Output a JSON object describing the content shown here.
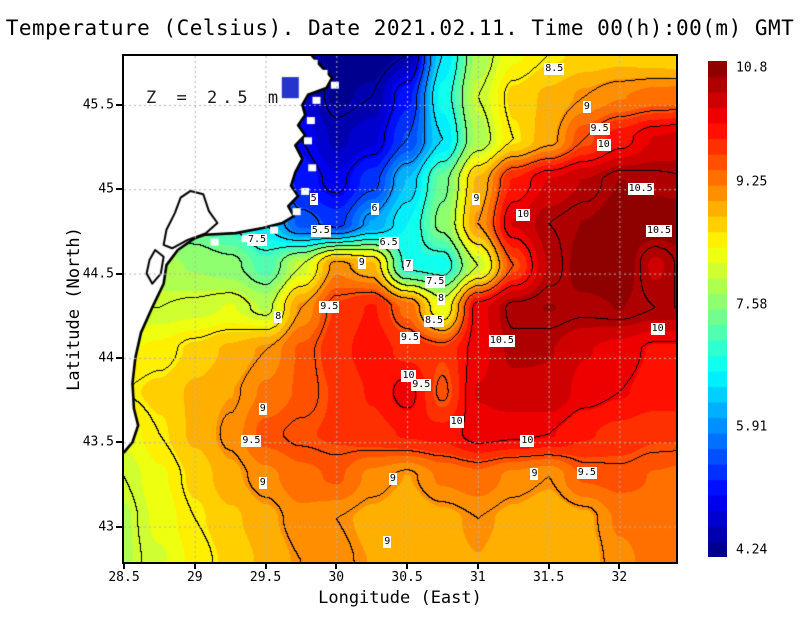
{
  "title": "Temperature (Celsius). Date 2021.02.11. Time 00(h):00(m) GMT",
  "annotation": "Z = 2.5 m",
  "axes": {
    "x": {
      "label": "Longitude (East)",
      "ticks": [
        28.5,
        29,
        29.5,
        30,
        30.5,
        31,
        31.5,
        32
      ],
      "tick_labels": [
        "28.5",
        "29",
        "29.5",
        "30",
        "30.5",
        "31",
        "31.5",
        "32"
      ]
    },
    "y": {
      "label": "Latitude (North)",
      "ticks": [
        45.5,
        45,
        44.5,
        44,
        43.5,
        43
      ],
      "tick_labels": [
        "45.5",
        "45",
        "44.5",
        "44",
        "43.5",
        "43"
      ]
    }
  },
  "colorbar": {
    "min": 4.24,
    "max": 10.8,
    "n_segments": 32,
    "labels": [
      "10.8",
      "9.25",
      "7.58",
      "5.91",
      "4.24"
    ],
    "label_values": [
      10.8,
      9.25,
      7.58,
      5.91,
      4.24
    ]
  },
  "chart_data": {
    "type": "heatmap",
    "subtype": "filled-contour-map",
    "lon_min": 28.5,
    "lon_max": 32.4,
    "lat_min": 42.79,
    "lat_max": 45.79,
    "fill_min": 4.24,
    "fill_max": 10.8,
    "contour_interval": 0.5,
    "grid_lon_start": 28.5,
    "grid_lat_start": 45.8,
    "grid_step": 0.25,
    "temps": [
      [
        6.0,
        6.0,
        5.8,
        5.5,
        5.2,
        4.8,
        4.3,
        4.3,
        4.5,
        6.5,
        7.8,
        8.3,
        8.5,
        8.6,
        8.65,
        8.6,
        8.5
      ],
      [
        6.2,
        6.2,
        6.0,
        5.6,
        5.2,
        4.8,
        4.4,
        4.5,
        5.2,
        6.8,
        8.0,
        8.6,
        8.8,
        9.0,
        9.15,
        9.25,
        9.3
      ],
      [
        6.5,
        6.5,
        6.3,
        5.8,
        5.4,
        5.0,
        4.6,
        4.8,
        5.5,
        6.5,
        7.8,
        8.5,
        8.9,
        9.5,
        9.9,
        10.2,
        10.3
      ],
      [
        7.0,
        7.0,
        6.8,
        6.3,
        5.8,
        5.2,
        4.9,
        5.4,
        6.3,
        7.4,
        8.8,
        9.8,
        10.2,
        10.4,
        10.6,
        10.55,
        10.5
      ],
      [
        7.5,
        7.5,
        7.3,
        7.0,
        6.5,
        5.6,
        5.4,
        6.1,
        6.7,
        7.6,
        9.0,
        10.2,
        10.5,
        10.6,
        10.7,
        10.72,
        10.7
      ],
      [
        7.8,
        7.8,
        7.7,
        7.6,
        7.2,
        8.0,
        9.1,
        8.8,
        6.9,
        6.8,
        8.0,
        9.5,
        10.4,
        10.7,
        10.75,
        10.35,
        10.6
      ],
      [
        8.0,
        8.0,
        8.05,
        8.15,
        7.9,
        9.0,
        9.6,
        9.8,
        9.3,
        8.2,
        10.1,
        10.55,
        10.6,
        10.55,
        10.6,
        10.5,
        10.5
      ],
      [
        8.3,
        8.4,
        8.6,
        8.8,
        9.0,
        9.4,
        9.7,
        9.9,
        9.7,
        9.6,
        10.1,
        10.45,
        10.4,
        10.2,
        10.1,
        9.95,
        9.95
      ],
      [
        8.5,
        8.6,
        8.8,
        8.95,
        9.2,
        9.4,
        9.6,
        9.8,
        10.1,
        9.45,
        10.2,
        10.3,
        10.35,
        10.1,
        10.0,
        9.9,
        9.9
      ],
      [
        8.2,
        8.5,
        8.8,
        9.05,
        9.45,
        9.55,
        9.6,
        9.7,
        9.8,
        9.85,
        10.1,
        10.05,
        10.0,
        9.8,
        9.7,
        9.6,
        9.6
      ],
      [
        8.0,
        8.3,
        8.6,
        8.9,
        9.1,
        9.3,
        9.4,
        9.1,
        8.95,
        9.2,
        9.3,
        9.1,
        9.0,
        9.4,
        9.45,
        9.35,
        9.3
      ],
      [
        7.9,
        8.2,
        8.5,
        8.7,
        8.9,
        9.1,
        9.0,
        8.9,
        8.8,
        8.9,
        9.0,
        8.9,
        8.8,
        8.9,
        9.2,
        9.3,
        9.4
      ],
      [
        7.9,
        8.1,
        8.4,
        8.6,
        8.8,
        9.0,
        9.05,
        8.95,
        8.85,
        8.9,
        8.95,
        8.85,
        8.8,
        8.85,
        9.1,
        9.25,
        9.3
      ]
    ],
    "contour_labels": [
      {
        "t": "8.5",
        "lon": 31.54,
        "lat": 45.71
      },
      {
        "t": "9",
        "lon": 31.77,
        "lat": 45.49
      },
      {
        "t": "9.5",
        "lon": 31.86,
        "lat": 45.36
      },
      {
        "t": "10",
        "lon": 31.89,
        "lat": 45.26
      },
      {
        "t": "10.5",
        "lon": 32.15,
        "lat": 45.0
      },
      {
        "t": "10.5",
        "lon": 32.28,
        "lat": 44.75
      },
      {
        "t": "5",
        "lon": 29.84,
        "lat": 44.94
      },
      {
        "t": "6",
        "lon": 30.27,
        "lat": 44.88
      },
      {
        "t": "5.5",
        "lon": 29.89,
        "lat": 44.75
      },
      {
        "t": "7.5",
        "lon": 29.44,
        "lat": 44.7
      },
      {
        "t": "6.5",
        "lon": 30.37,
        "lat": 44.68
      },
      {
        "t": "9",
        "lon": 30.18,
        "lat": 44.56
      },
      {
        "t": "7",
        "lon": 30.51,
        "lat": 44.55
      },
      {
        "t": "7.5",
        "lon": 30.7,
        "lat": 44.45
      },
      {
        "t": "8",
        "lon": 30.74,
        "lat": 44.35
      },
      {
        "t": "9.5",
        "lon": 29.95,
        "lat": 44.3
      },
      {
        "t": "8",
        "lon": 29.59,
        "lat": 44.24
      },
      {
        "t": "8.5",
        "lon": 30.69,
        "lat": 44.22
      },
      {
        "t": "9.5",
        "lon": 30.52,
        "lat": 44.12
      },
      {
        "t": "10.5",
        "lon": 31.17,
        "lat": 44.1
      },
      {
        "t": "10",
        "lon": 32.27,
        "lat": 44.17
      },
      {
        "t": "9",
        "lon": 30.99,
        "lat": 44.94
      },
      {
        "t": "10",
        "lon": 31.32,
        "lat": 44.85
      },
      {
        "t": "10",
        "lon": 30.51,
        "lat": 43.89
      },
      {
        "t": "9.5",
        "lon": 30.6,
        "lat": 43.84
      },
      {
        "t": "9",
        "lon": 29.48,
        "lat": 43.7
      },
      {
        "t": "10",
        "lon": 30.85,
        "lat": 43.62
      },
      {
        "t": "9.5",
        "lon": 29.4,
        "lat": 43.51
      },
      {
        "t": "10",
        "lon": 31.35,
        "lat": 43.51
      },
      {
        "t": "9",
        "lon": 31.4,
        "lat": 43.31
      },
      {
        "t": "9.5",
        "lon": 31.77,
        "lat": 43.32
      },
      {
        "t": "9",
        "lon": 29.48,
        "lat": 43.26
      },
      {
        "t": "9",
        "lon": 30.4,
        "lat": 43.28
      },
      {
        "t": "9",
        "lon": 30.36,
        "lat": 42.91
      }
    ],
    "coastline": [
      [
        29.7,
        45.95
      ],
      [
        29.79,
        45.83
      ],
      [
        29.88,
        45.74
      ],
      [
        29.97,
        45.66
      ],
      [
        29.93,
        45.6
      ],
      [
        29.8,
        45.56
      ],
      [
        29.76,
        45.5
      ],
      [
        29.78,
        45.44
      ],
      [
        29.73,
        45.38
      ],
      [
        29.78,
        45.32
      ],
      [
        29.71,
        45.26
      ],
      [
        29.76,
        45.18
      ],
      [
        29.71,
        45.1
      ],
      [
        29.68,
        45.02
      ],
      [
        29.73,
        44.96
      ],
      [
        29.66,
        44.9
      ],
      [
        29.7,
        44.84
      ],
      [
        29.62,
        44.8
      ],
      [
        29.48,
        44.77
      ],
      [
        29.29,
        44.74
      ],
      [
        29.07,
        44.73
      ],
      [
        29.0,
        44.71
      ],
      [
        28.88,
        44.64
      ],
      [
        28.8,
        44.55
      ],
      [
        28.78,
        44.44
      ],
      [
        28.7,
        44.3
      ],
      [
        28.62,
        44.15
      ],
      [
        28.58,
        44.0
      ],
      [
        28.56,
        43.85
      ],
      [
        28.57,
        43.7
      ],
      [
        28.6,
        43.6
      ],
      [
        28.56,
        43.5
      ],
      [
        28.5,
        43.44
      ],
      [
        28.42,
        43.38
      ],
      [
        28.4,
        45.95
      ]
    ],
    "lagoons": [
      [
        [
          28.97,
          44.99
        ],
        [
          29.06,
          44.97
        ],
        [
          29.1,
          44.87
        ],
        [
          29.16,
          44.8
        ],
        [
          29.08,
          44.74
        ],
        [
          28.95,
          44.7
        ],
        [
          28.84,
          44.65
        ],
        [
          28.78,
          44.67
        ],
        [
          28.8,
          44.76
        ],
        [
          28.86,
          44.86
        ],
        [
          28.9,
          44.95
        ]
      ],
      [
        [
          28.72,
          44.64
        ],
        [
          28.78,
          44.6
        ],
        [
          28.76,
          44.5
        ],
        [
          28.7,
          44.44
        ],
        [
          28.66,
          44.5
        ],
        [
          28.68,
          44.58
        ]
      ]
    ],
    "lake": {
      "lon": 29.615,
      "lat": 45.665,
      "w_deg": 0.12,
      "h_deg": 0.125
    },
    "coast_steps": [
      [
        29.84,
        45.75
      ],
      [
        29.91,
        45.69
      ],
      [
        29.99,
        45.62
      ],
      [
        29.86,
        45.53
      ],
      [
        29.82,
        45.41
      ],
      [
        29.8,
        45.29
      ],
      [
        29.83,
        45.13
      ],
      [
        29.78,
        44.99
      ],
      [
        29.72,
        44.87
      ],
      [
        29.56,
        44.76
      ],
      [
        29.36,
        44.71
      ],
      [
        29.14,
        44.69
      ]
    ],
    "colors": {
      "land": "#ffffff",
      "coast": "#000000",
      "grid": "#b3b3b3",
      "contour": "#000000",
      "lake": "#2633cc",
      "frame": "#000000"
    }
  }
}
